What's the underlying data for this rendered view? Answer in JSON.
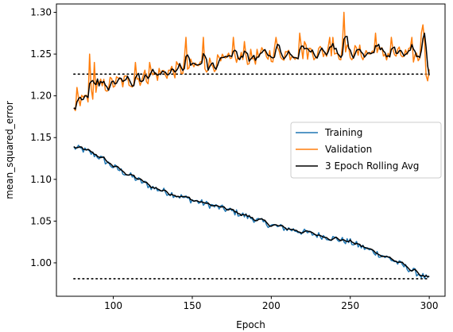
{
  "chart_data": {
    "type": "line",
    "title": "",
    "xlabel": "Epoch",
    "ylabel": "mean_squared_error",
    "xlim": [
      64,
      310
    ],
    "ylim": [
      0.96,
      1.31
    ],
    "x_ticks": [
      100,
      150,
      200,
      250,
      300
    ],
    "y_ticks": [
      1.0,
      1.05,
      1.1,
      1.15,
      1.2,
      1.25,
      1.3
    ],
    "x_tick_labels": [
      "100",
      "150",
      "200",
      "250",
      "300"
    ],
    "y_tick_labels": [
      "1.00",
      "1.05",
      "1.10",
      "1.15",
      "1.20",
      "1.25",
      "1.30"
    ],
    "grid": false,
    "legend_position": "center-right",
    "x_start": 75,
    "x_end": 300,
    "series": [
      {
        "name": "Training",
        "color": "#1f77b4",
        "trend": [
          [
            75,
            1.138
          ],
          [
            80,
            1.136
          ],
          [
            90,
            1.128
          ],
          [
            100,
            1.115
          ],
          [
            125,
            1.09
          ],
          [
            150,
            1.075
          ],
          [
            175,
            1.062
          ],
          [
            200,
            1.045
          ],
          [
            225,
            1.035
          ],
          [
            250,
            1.025
          ],
          [
            275,
            1.005
          ],
          [
            290,
            0.99
          ],
          [
            300,
            0.98
          ]
        ],
        "noise": 0.004
      },
      {
        "name": "Validation",
        "color": "#ff7f0e",
        "trend": [
          [
            75,
            1.18
          ],
          [
            80,
            1.195
          ],
          [
            90,
            1.21
          ],
          [
            100,
            1.215
          ],
          [
            110,
            1.218
          ],
          [
            125,
            1.225
          ],
          [
            150,
            1.235
          ],
          [
            175,
            1.242
          ],
          [
            200,
            1.25
          ],
          [
            225,
            1.253
          ],
          [
            250,
            1.252
          ],
          [
            275,
            1.25
          ],
          [
            290,
            1.248
          ],
          [
            295,
            1.245
          ],
          [
            300,
            1.225
          ]
        ],
        "noise": 0.01,
        "spikes": [
          [
            77,
            1.21
          ],
          [
            85,
            1.25
          ],
          [
            88,
            1.24
          ],
          [
            114,
            1.24
          ],
          [
            123,
            1.24
          ],
          [
            145,
            1.245
          ],
          [
            146,
            1.27
          ],
          [
            157,
            1.27
          ],
          [
            176,
            1.27
          ],
          [
            183,
            1.265
          ],
          [
            203,
            1.27
          ],
          [
            218,
            1.275
          ],
          [
            221,
            1.265
          ],
          [
            237,
            1.27
          ],
          [
            239,
            1.27
          ],
          [
            246,
            1.3
          ],
          [
            266,
            1.275
          ],
          [
            276,
            1.27
          ],
          [
            289,
            1.27
          ],
          [
            295,
            1.275
          ],
          [
            296,
            1.285
          ],
          [
            297,
            1.265
          ],
          [
            299,
            1.218
          ]
        ]
      },
      {
        "name": "3 Epoch Rolling Avg",
        "color": "#000000",
        "rolling_of": [
          "Training",
          "Validation"
        ],
        "window": 3
      }
    ],
    "reference_lines": [
      {
        "y": 1.226,
        "x_from": 75,
        "x_to": 300,
        "style": "dotted",
        "color": "#000000"
      },
      {
        "y": 0.981,
        "x_from": 75,
        "x_to": 300,
        "style": "dotted",
        "color": "#000000"
      }
    ],
    "legend": [
      {
        "label": "Training",
        "color": "#1f77b4"
      },
      {
        "label": "Validation",
        "color": "#ff7f0e"
      },
      {
        "label": "3 Epoch Rolling Avg",
        "color": "#000000"
      }
    ]
  }
}
